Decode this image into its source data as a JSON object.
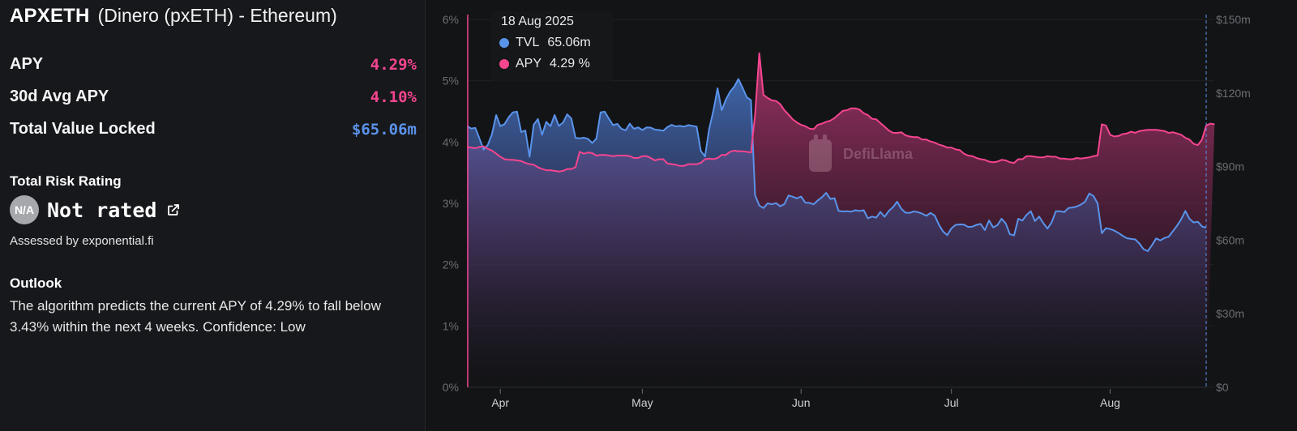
{
  "header": {
    "symbol": "APXETH",
    "name": "(Dinero (pxETH) - Ethereum)"
  },
  "stats": [
    {
      "label": "APY",
      "value": "4.29%",
      "color": "#f5458f"
    },
    {
      "label": "30d Avg APY",
      "value": "4.10%",
      "color": "#f5458f"
    },
    {
      "label": "Total Value Locked",
      "value": "$65.06m",
      "color": "#5a93ea"
    }
  ],
  "risk": {
    "title": "Total Risk Rating",
    "badge": "N/A",
    "rating": "Not rated",
    "assessed_by": "Assessed by exponential.fi"
  },
  "outlook": {
    "title": "Outlook",
    "text": "The algorithm predicts the current APY of 4.29% to fall below 3.43% within the next 4 weeks. Confidence: Low"
  },
  "tooltip": {
    "date": "18 Aug 2025",
    "tvl_label": "TVL",
    "tvl_value": "65.06m",
    "apy_label": "APY",
    "apy_value": "4.29 %"
  },
  "watermark": "DefiLlama",
  "colors": {
    "tvl": "#5a93ea",
    "apy": "#f5458f",
    "background": "#131416",
    "panel": "#17181b"
  },
  "chart_data": {
    "type": "area",
    "x_tick_labels": [
      "Apr",
      "May",
      "Jun",
      "Jul",
      "Aug"
    ],
    "y_left_ticks": [
      "0%",
      "1%",
      "2%",
      "3%",
      "4%",
      "5%",
      "6%"
    ],
    "y_right_ticks": [
      "$0",
      "$30m",
      "$60m",
      "$90m",
      "$120m",
      "$150m"
    ],
    "ylim_left": [
      0,
      6
    ],
    "ylim_right": [
      0,
      150
    ],
    "grid": true,
    "series": [
      {
        "name": "TVL",
        "axis": "right",
        "unit": "$m",
        "values": [
          106.6,
          105.5,
          105.8,
          101.4,
          96.9,
          98.9,
          103.2,
          111.0,
          106.5,
          107.3,
          110.1,
          112.1,
          112.4,
          104.1,
          104.7,
          94.0,
          107.1,
          109.4,
          103.0,
          108.2,
          106.5,
          111.0,
          106.6,
          107.9,
          111.3,
          109.6,
          101.7,
          101.5,
          101.8,
          101.3,
          99.6,
          101.4,
          112.1,
          112.4,
          109.5,
          106.9,
          107.4,
          105.4,
          104.8,
          107.5,
          105.4,
          106.0,
          104.9,
          106.0,
          105.9,
          105.1,
          104.9,
          104.6,
          106.1,
          107.0,
          106.4,
          106.6,
          106.3,
          106.9,
          106.6,
          106.3,
          96.4,
          94.1,
          105.3,
          112.7,
          121.9,
          113.0,
          117.4,
          120.5,
          122.6,
          125.7,
          122.1,
          118.3,
          117.1,
          78.3,
          74.1,
          73.1,
          75.0,
          74.6,
          75.1,
          73.8,
          74.7,
          78.2,
          77.7,
          77.0,
          77.8,
          75.3,
          75.2,
          74.6,
          76.2,
          77.5,
          79.3,
          76.8,
          77.1,
          71.9,
          71.7,
          71.8,
          71.6,
          72.2,
          71.9,
          72.2,
          68.9,
          69.6,
          69.2,
          71.5,
          69.5,
          71.9,
          73.4,
          75.7,
          72.8,
          71.2,
          71.1,
          71.7,
          71.4,
          70.8,
          69.9,
          71.1,
          70.0,
          66.3,
          63.5,
          62.0,
          64.8,
          66.2,
          66.4,
          66.3,
          65.4,
          65.5,
          66.2,
          66.6,
          64.1,
          68.0,
          65.2,
          66.1,
          68.7,
          66.8,
          62.4,
          61.9,
          68.7,
          68.0,
          70.3,
          71.8,
          67.8,
          69.6,
          66.9,
          64.7,
          67.3,
          71.8,
          71.8,
          71.4,
          73.1,
          73.3,
          73.7,
          74.5,
          75.7,
          79.0,
          78.0,
          75.0,
          62.8,
          64.9,
          64.5,
          63.9,
          62.9,
          61.8,
          60.8,
          60.5,
          60.3,
          58.6,
          56.3,
          55.5,
          57.9,
          60.7,
          59.9,
          60.9,
          61.4,
          63.6,
          65.8,
          68.5,
          71.9,
          68.7,
          67.2,
          67.5,
          65.6,
          65.06
        ]
      },
      {
        "name": "APY",
        "axis": "left",
        "unit": "%",
        "values": [
          3.92,
          3.91,
          3.9,
          3.92,
          3.93,
          3.89,
          3.86,
          3.81,
          3.76,
          3.72,
          3.71,
          3.71,
          3.7,
          3.69,
          3.66,
          3.64,
          3.63,
          3.59,
          3.56,
          3.54,
          3.54,
          3.53,
          3.52,
          3.53,
          3.56,
          3.56,
          3.59,
          3.84,
          3.81,
          3.83,
          3.82,
          3.78,
          3.79,
          3.79,
          3.78,
          3.77,
          3.78,
          3.78,
          3.78,
          3.77,
          3.74,
          3.74,
          3.77,
          3.77,
          3.74,
          3.7,
          3.72,
          3.72,
          3.65,
          3.64,
          3.63,
          3.61,
          3.61,
          3.64,
          3.64,
          3.64,
          3.66,
          3.72,
          3.73,
          3.72,
          3.74,
          3.79,
          3.79,
          3.84,
          3.86,
          3.85,
          3.85,
          3.84,
          3.83,
          4.45,
          5.45,
          4.77,
          4.72,
          4.68,
          4.67,
          4.62,
          4.52,
          4.45,
          4.37,
          4.32,
          4.28,
          4.26,
          4.22,
          4.21,
          4.28,
          4.3,
          4.33,
          4.35,
          4.39,
          4.45,
          4.51,
          4.52,
          4.55,
          4.55,
          4.53,
          4.47,
          4.44,
          4.38,
          4.37,
          4.31,
          4.25,
          4.19,
          4.15,
          4.15,
          4.16,
          4.11,
          4.09,
          4.08,
          4.08,
          4.04,
          4.04,
          4.01,
          3.99,
          3.96,
          3.94,
          3.91,
          3.91,
          3.88,
          3.87,
          3.81,
          3.78,
          3.77,
          3.74,
          3.72,
          3.71,
          3.68,
          3.67,
          3.68,
          3.71,
          3.7,
          3.67,
          3.66,
          3.72,
          3.72,
          3.77,
          3.77,
          3.76,
          3.75,
          3.75,
          3.77,
          3.76,
          3.76,
          3.73,
          3.73,
          3.72,
          3.72,
          3.74,
          3.73,
          3.74,
          3.75,
          3.77,
          3.78,
          4.29,
          4.27,
          4.12,
          4.09,
          4.1,
          4.13,
          4.14,
          4.17,
          4.15,
          4.18,
          4.19,
          4.2,
          4.2,
          4.2,
          4.19,
          4.18,
          4.15,
          4.16,
          4.14,
          4.12,
          4.07,
          4.04,
          3.97,
          3.95,
          4.04,
          4.27,
          4.3,
          4.29
        ]
      }
    ]
  }
}
